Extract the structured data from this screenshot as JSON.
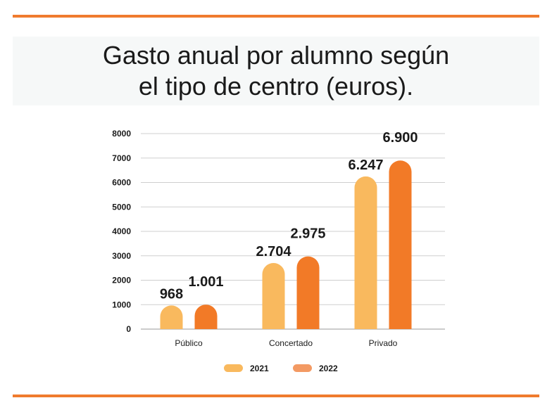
{
  "title_lines": [
    "Gasto anual por alumno según",
    "el tipo de centro (euros)."
  ],
  "colors": {
    "rule": "#f07b2e",
    "series_2021": "#f9b95e",
    "series_2022": "#f27a27",
    "legend_2022": "#f39a63",
    "grid": "#cfcfcf",
    "text": "#1a1a1a"
  },
  "chart_data": {
    "type": "bar",
    "title": "Gasto anual por alumno según el tipo de centro (euros).",
    "categories": [
      "Público",
      "Concertado",
      "Privado"
    ],
    "series": [
      {
        "name": "2021",
        "values": [
          968,
          2704,
          6247
        ],
        "labels": [
          "968",
          "2.704",
          "6.247"
        ]
      },
      {
        "name": "2022",
        "values": [
          1001,
          2975,
          6900
        ],
        "labels": [
          "1.001",
          "2.975",
          "6.900"
        ]
      }
    ],
    "yticks": [
      0,
      1000,
      2000,
      3000,
      4000,
      5000,
      6000,
      7000,
      8000
    ],
    "ylim": [
      0,
      8000
    ],
    "grid": true,
    "legend": "bottom-center",
    "xlabel": "",
    "ylabel": ""
  }
}
